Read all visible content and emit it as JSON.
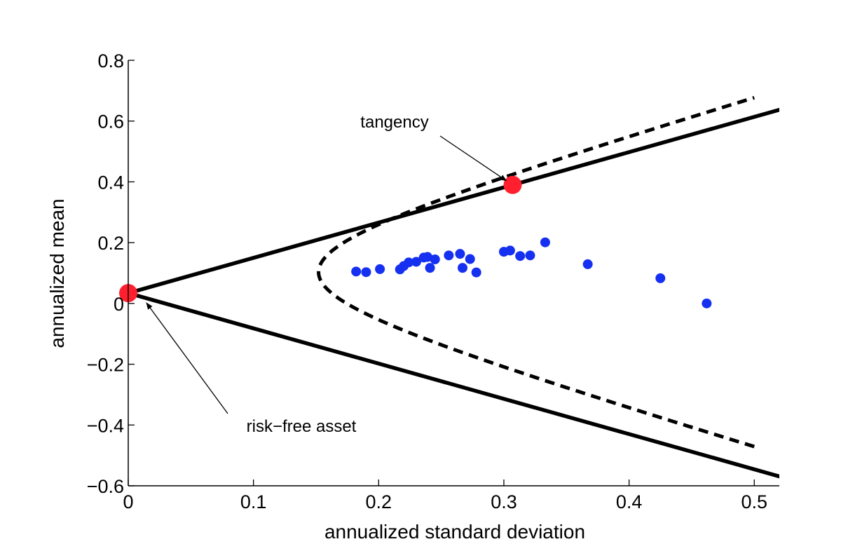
{
  "chart_data": {
    "type": "scatter",
    "title": "",
    "xlabel": "annualized standard deviation",
    "ylabel": "annualized mean",
    "xlim": [
      0,
      0.52
    ],
    "ylim": [
      -0.6,
      0.8
    ],
    "xticks": [
      0,
      0.1,
      0.2,
      0.3,
      0.4,
      0.5
    ],
    "yticks": [
      -0.6,
      -0.4,
      -0.2,
      0,
      0.2,
      0.4,
      0.6,
      0.8
    ],
    "xtick_labels": [
      "0",
      "0.1",
      "0.2",
      "0.3",
      "0.4",
      "0.5"
    ],
    "ytick_labels": [
      "−0.6",
      "−0.4",
      "−0.2",
      "0",
      "0.2",
      "0.4",
      "0.6",
      "0.8"
    ],
    "grid": false,
    "risk_free": {
      "x": 0,
      "y": 0.034
    },
    "tangency": {
      "x": 0.307,
      "y": 0.39
    },
    "frontier_params": {
      "gmv_sd": 0.152,
      "gmv_mean": 0.103,
      "slope": 1.205,
      "sd_max": 0.5
    },
    "assets": [
      {
        "x": 0.182,
        "y": 0.105
      },
      {
        "x": 0.19,
        "y": 0.103
      },
      {
        "x": 0.201,
        "y": 0.113
      },
      {
        "x": 0.217,
        "y": 0.112
      },
      {
        "x": 0.22,
        "y": 0.123
      },
      {
        "x": 0.224,
        "y": 0.135
      },
      {
        "x": 0.23,
        "y": 0.137
      },
      {
        "x": 0.236,
        "y": 0.151
      },
      {
        "x": 0.239,
        "y": 0.153
      },
      {
        "x": 0.241,
        "y": 0.117
      },
      {
        "x": 0.245,
        "y": 0.145
      },
      {
        "x": 0.256,
        "y": 0.158
      },
      {
        "x": 0.265,
        "y": 0.163
      },
      {
        "x": 0.267,
        "y": 0.117
      },
      {
        "x": 0.273,
        "y": 0.146
      },
      {
        "x": 0.278,
        "y": 0.102
      },
      {
        "x": 0.3,
        "y": 0.17
      },
      {
        "x": 0.305,
        "y": 0.174
      },
      {
        "x": 0.313,
        "y": 0.156
      },
      {
        "x": 0.321,
        "y": 0.158
      },
      {
        "x": 0.333,
        "y": 0.201
      },
      {
        "x": 0.367,
        "y": 0.129
      },
      {
        "x": 0.425,
        "y": 0.083
      },
      {
        "x": 0.462,
        "y": 0.0
      }
    ],
    "annotations": [
      {
        "text": "tangency",
        "points_to": "tangency"
      },
      {
        "text": "risk−free asset",
        "points_to": "risk_free"
      }
    ],
    "colors": {
      "assets": "#1530f0",
      "highlight": "#ff1f2e",
      "lines": "#000000"
    }
  }
}
